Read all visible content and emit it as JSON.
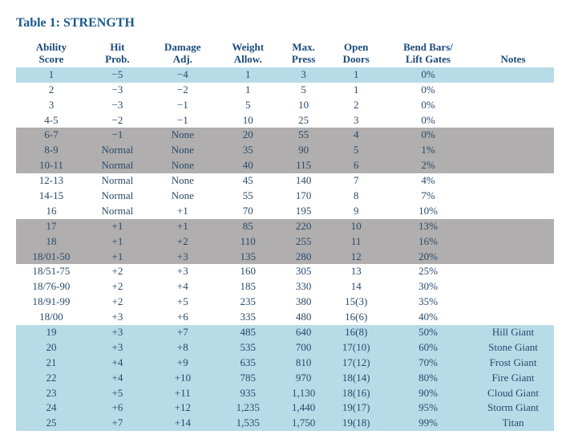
{
  "title": "Table 1: STRENGTH",
  "colors": {
    "title_color": "#1a5a8a",
    "text_color": "#2a4a6a",
    "band_blue": "#b8dbe8",
    "band_gray": "#b0aeae",
    "band_none": "transparent"
  },
  "headers": [
    "Ability\nScore",
    "Hit\nProb.",
    "Damage\nAdj.",
    "Weight\nAllow.",
    "Max.\nPress",
    "Open\nDoors",
    "Bend Bars/\nLift Gates",
    "Notes"
  ],
  "rows": [
    {
      "band": "blue",
      "cells": [
        "1",
        "−5",
        "−4",
        "1",
        "3",
        "1",
        "0%",
        ""
      ]
    },
    {
      "band": "none",
      "cells": [
        "2",
        "−3",
        "−2",
        "1",
        "5",
        "1",
        "0%",
        ""
      ]
    },
    {
      "band": "none",
      "cells": [
        "3",
        "−3",
        "−1",
        "5",
        "10",
        "2",
        "0%",
        ""
      ]
    },
    {
      "band": "none",
      "cells": [
        "4-5",
        "−2",
        "−1",
        "10",
        "25",
        "3",
        "0%",
        ""
      ]
    },
    {
      "band": "gray",
      "cells": [
        "6-7",
        "−1",
        "None",
        "20",
        "55",
        "4",
        "0%",
        ""
      ]
    },
    {
      "band": "gray",
      "cells": [
        "8-9",
        "Normal",
        "None",
        "35",
        "90",
        "5",
        "1%",
        ""
      ]
    },
    {
      "band": "gray",
      "cells": [
        "10-11",
        "Normal",
        "None",
        "40",
        "115",
        "6",
        "2%",
        ""
      ]
    },
    {
      "band": "none",
      "cells": [
        "12-13",
        "Normal",
        "None",
        "45",
        "140",
        "7",
        "4%",
        ""
      ]
    },
    {
      "band": "none",
      "cells": [
        "14-15",
        "Normal",
        "None",
        "55",
        "170",
        "8",
        "7%",
        ""
      ]
    },
    {
      "band": "none",
      "cells": [
        "16",
        "Normal",
        "+1",
        "70",
        "195",
        "9",
        "10%",
        ""
      ]
    },
    {
      "band": "gray",
      "cells": [
        "17",
        "+1",
        "+1",
        "85",
        "220",
        "10",
        "13%",
        ""
      ]
    },
    {
      "band": "gray",
      "cells": [
        "18",
        "+1",
        "+2",
        "110",
        "255",
        "11",
        "16%",
        ""
      ]
    },
    {
      "band": "gray",
      "cells": [
        "18/01-50",
        "+1",
        "+3",
        "135",
        "280",
        "12",
        "20%",
        ""
      ]
    },
    {
      "band": "none",
      "cells": [
        "18/51-75",
        "+2",
        "+3",
        "160",
        "305",
        "13",
        "25%",
        ""
      ]
    },
    {
      "band": "none",
      "cells": [
        "18/76-90",
        "+2",
        "+4",
        "185",
        "330",
        "14",
        "30%",
        ""
      ]
    },
    {
      "band": "none",
      "cells": [
        "18/91-99",
        "+2",
        "+5",
        "235",
        "380",
        "15(3)",
        "35%",
        ""
      ]
    },
    {
      "band": "none",
      "cells": [
        "18/00",
        "+3",
        "+6",
        "335",
        "480",
        "16(6)",
        "40%",
        ""
      ]
    },
    {
      "band": "blue",
      "cells": [
        "19",
        "+3",
        "+7",
        "485",
        "640",
        "16(8)",
        "50%",
        "Hill Giant"
      ]
    },
    {
      "band": "blue",
      "cells": [
        "20",
        "+3",
        "+8",
        "535",
        "700",
        "17(10)",
        "60%",
        "Stone Giant"
      ]
    },
    {
      "band": "blue",
      "cells": [
        "21",
        "+4",
        "+9",
        "635",
        "810",
        "17(12)",
        "70%",
        "Frost Giant"
      ]
    },
    {
      "band": "blue",
      "cells": [
        "22",
        "+4",
        "+10",
        "785",
        "970",
        "18(14)",
        "80%",
        "Fire Giant"
      ]
    },
    {
      "band": "blue",
      "cells": [
        "23",
        "+5",
        "+11",
        "935",
        "1,130",
        "18(16)",
        "90%",
        "Cloud Giant"
      ]
    },
    {
      "band": "blue",
      "cells": [
        "24",
        "+6",
        "+12",
        "1,235",
        "1,440",
        "19(17)",
        "95%",
        "Storm Giant"
      ]
    },
    {
      "band": "blue",
      "cells": [
        "25",
        "+7",
        "+14",
        "1,535",
        "1,750",
        "19(18)",
        "99%",
        "Titan"
      ]
    }
  ]
}
